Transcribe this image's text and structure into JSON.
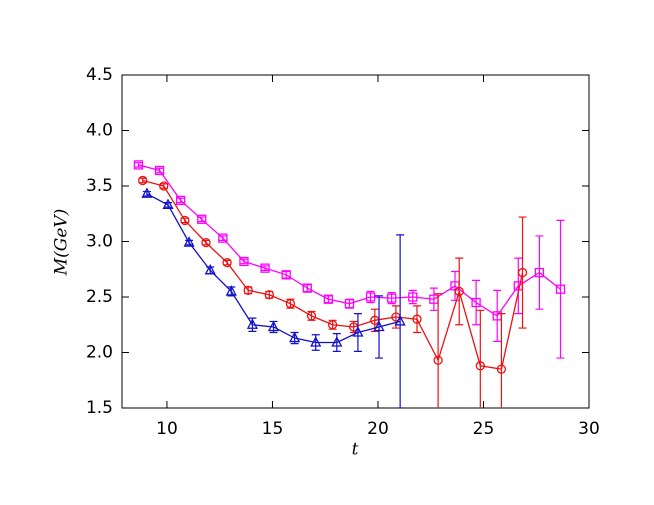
{
  "chart_data": {
    "type": "line",
    "x_label": "t",
    "y_label": "M(GeV)",
    "xlim": [
      7.87,
      30
    ],
    "ylim": [
      1.5,
      4.5
    ],
    "xticks": [
      10,
      15,
      20,
      25,
      30
    ],
    "yticks": [
      1.5,
      {
        "value": 2,
        "label": "2.0"
      },
      2.5,
      {
        "value": 3,
        "label": "3.0"
      },
      3.5,
      {
        "value": 4,
        "label": "4.0"
      },
      4.5
    ],
    "series": [
      {
        "color": "#ff00ff",
        "marker": "square",
        "x": [
          8.65,
          9.65,
          10.65,
          11.65,
          12.65,
          13.65,
          14.65,
          15.65,
          16.65,
          17.65,
          18.65,
          19.65,
          20.65,
          21.65,
          22.65,
          23.65,
          24.65,
          25.65,
          26.65,
          27.65,
          28.65
        ],
        "values": [
          3.69,
          3.64,
          3.37,
          3.2,
          3.03,
          2.82,
          2.76,
          2.7,
          2.58,
          2.48,
          2.44,
          2.5,
          2.49,
          2.5,
          2.48,
          2.6,
          2.45,
          2.33,
          2.6,
          2.72,
          2.57
        ],
        "errors": [
          0.02,
          0.02,
          0.02,
          0.02,
          0.02,
          0.02,
          0.02,
          0.03,
          0.03,
          0.03,
          0.04,
          0.05,
          0.05,
          0.06,
          0.1,
          0.13,
          0.2,
          0.23,
          0.25,
          0.33,
          0.62
        ]
      },
      {
        "color": "#ee1111",
        "marker": "circle",
        "x": [
          8.85,
          9.85,
          10.85,
          11.85,
          12.85,
          13.85,
          14.85,
          15.85,
          16.85,
          17.85,
          18.85,
          19.85,
          20.85,
          21.85,
          22.85,
          23.85,
          24.85,
          25.85,
          26.85
        ],
        "values": [
          3.55,
          3.5,
          3.19,
          2.99,
          2.81,
          2.56,
          2.52,
          2.44,
          2.33,
          2.25,
          2.23,
          2.29,
          2.32,
          2.3,
          1.93,
          2.55,
          1.88,
          1.85,
          2.72
        ],
        "errors": [
          0.02,
          0.02,
          0.02,
          0.02,
          0.02,
          0.03,
          0.03,
          0.04,
          0.04,
          0.04,
          0.05,
          0.1,
          0.1,
          0.12,
          0.6,
          0.3,
          0.5,
          0.5,
          0.5
        ]
      },
      {
        "color": "#1111cc",
        "marker": "triangle",
        "x": [
          9.05,
          10.05,
          11.05,
          12.05,
          13.05,
          14.05,
          15.05,
          16.05,
          17.05,
          18.05,
          19.05,
          20.05,
          21.05
        ],
        "values": [
          3.43,
          3.33,
          2.99,
          2.74,
          2.55,
          2.25,
          2.23,
          2.13,
          2.09,
          2.09,
          2.18,
          2.23,
          2.28
        ],
        "errors": [
          0.02,
          0.02,
          0.02,
          0.03,
          0.04,
          0.06,
          0.05,
          0.05,
          0.07,
          0.08,
          0.17,
          0.28,
          0.78
        ]
      }
    ]
  }
}
